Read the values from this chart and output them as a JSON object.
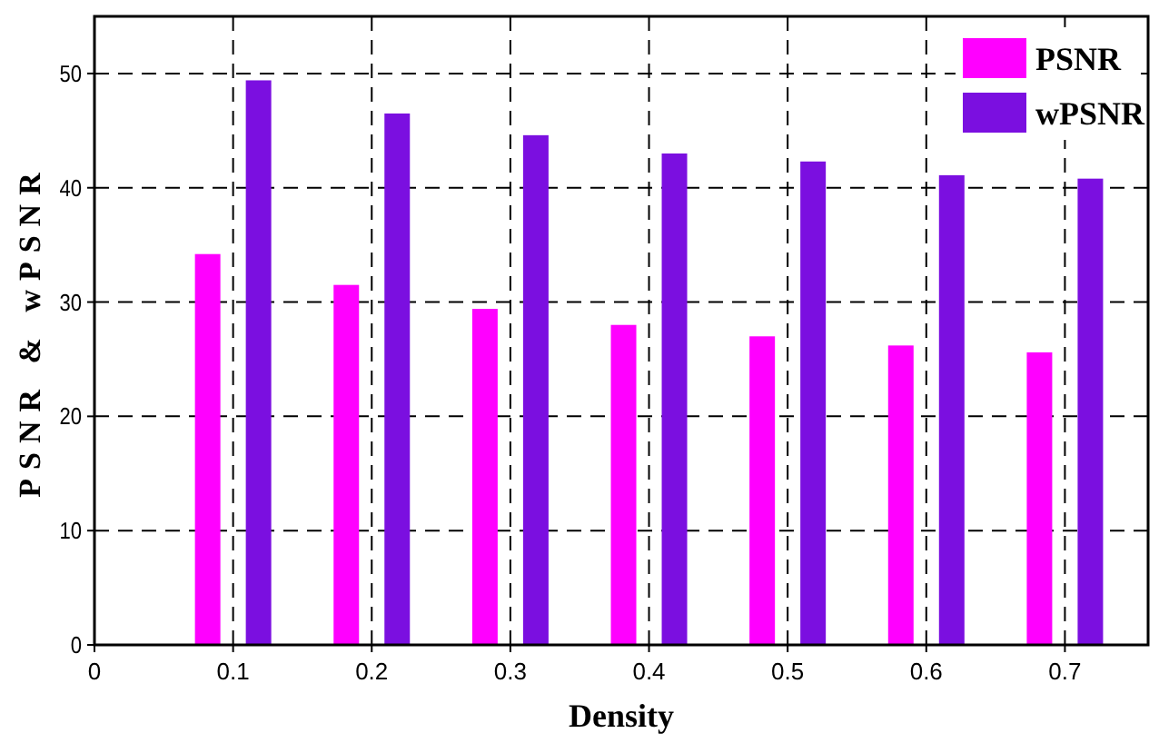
{
  "chart_data": {
    "type": "bar",
    "xlabel": "Density",
    "ylabel": "PSNR & wPSNR",
    "x": [
      0.1,
      0.2,
      0.3,
      0.4,
      0.5,
      0.6,
      0.7
    ],
    "series": [
      {
        "name": "PSNR",
        "color": "#ff00ff",
        "values": [
          34.2,
          31.5,
          29.4,
          28.0,
          27.0,
          26.2,
          25.6
        ]
      },
      {
        "name": "wPSNR",
        "color": "#7b0fe0",
        "values": [
          49.4,
          46.5,
          44.6,
          43.0,
          42.3,
          41.1,
          40.8
        ]
      }
    ],
    "xlim": [
      0,
      0.76
    ],
    "xticks": [
      0,
      0.1,
      0.2,
      0.3,
      0.4,
      0.5,
      0.6,
      0.7
    ],
    "ylim": [
      0,
      55
    ],
    "yticks": [
      0,
      10,
      20,
      30,
      40,
      50
    ],
    "grid": true,
    "legend": "top right"
  }
}
